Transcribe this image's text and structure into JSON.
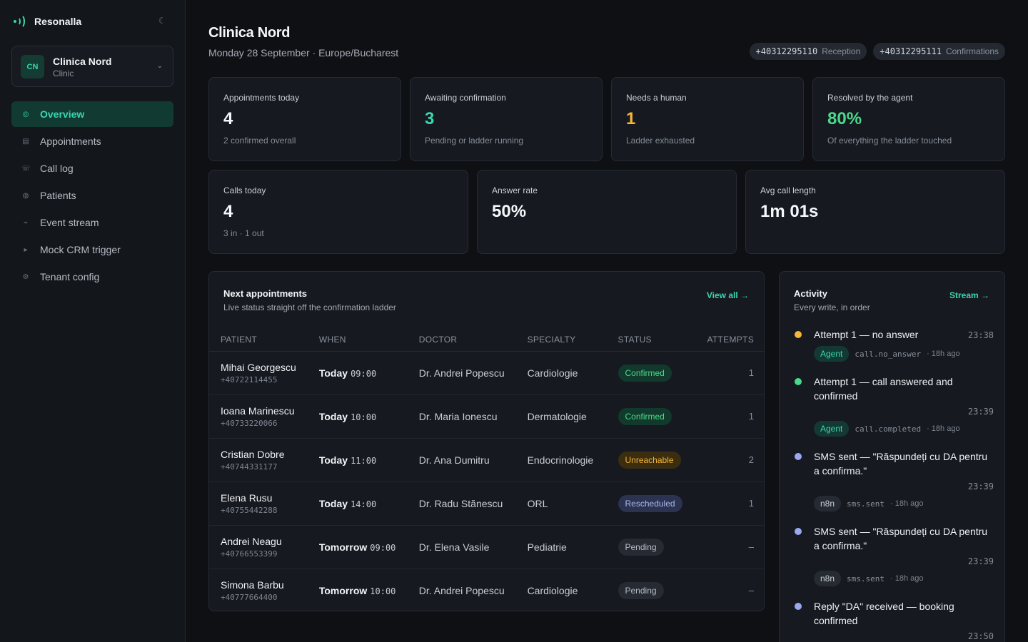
{
  "brand": {
    "name": "Resonalla"
  },
  "tenant": {
    "initials": "CN",
    "name": "Clinica Nord",
    "type": "Clinic"
  },
  "nav": [
    {
      "label": "Overview",
      "icon": "overview-icon",
      "glyph": "◎",
      "active": true
    },
    {
      "label": "Appointments",
      "icon": "appointments-icon",
      "glyph": "▤"
    },
    {
      "label": "Call log",
      "icon": "call-log-icon",
      "glyph": "☏"
    },
    {
      "label": "Patients",
      "icon": "patients-icon",
      "glyph": "◍"
    },
    {
      "label": "Event stream",
      "icon": "event-stream-icon",
      "glyph": "⌁"
    },
    {
      "label": "Mock CRM trigger",
      "icon": "play-icon",
      "glyph": "▸"
    },
    {
      "label": "Tenant config",
      "icon": "gear-icon",
      "glyph": "⚙"
    }
  ],
  "header": {
    "title": "Clinica Nord",
    "subtitle": "Monday 28 September · Europe/Bucharest",
    "phones": [
      {
        "number": "+40312295110",
        "label": "Reception"
      },
      {
        "number": "+40312295111",
        "label": "Confirmations"
      }
    ]
  },
  "stats_top": [
    {
      "label": "Appointments today",
      "value": "4",
      "hint": "2 confirmed overall"
    },
    {
      "label": "Awaiting confirmation",
      "value": "3",
      "hint": "Pending or ladder running"
    },
    {
      "label": "Needs a human",
      "value": "1",
      "hint": "Ladder exhausted"
    },
    {
      "label": "Resolved by the agent",
      "value": "80%",
      "hint": "Of everything the ladder touched"
    }
  ],
  "stats_bottom": [
    {
      "label": "Calls today",
      "value": "4",
      "hint": "3 in · 1 out"
    },
    {
      "label": "Answer rate",
      "value": "50%",
      "hint": ""
    },
    {
      "label": "Avg call length",
      "value": "1m 01s",
      "hint": ""
    }
  ],
  "appointments": {
    "title": "Next appointments",
    "subtitle": "Live status straight off the confirmation ladder",
    "view_all": "View all →",
    "columns": [
      "Patient",
      "When",
      "Doctor",
      "Specialty",
      "Status",
      "Attempts"
    ],
    "rows": [
      {
        "patient": "Mihai Georgescu",
        "phone": "+40722114455",
        "day": "Today",
        "time": "09:00",
        "doctor": "Dr. Andrei Popescu",
        "specialty": "Cardiologie",
        "status": "Confirmed",
        "attempts": "1"
      },
      {
        "patient": "Ioana Marinescu",
        "phone": "+40733220066",
        "day": "Today",
        "time": "10:00",
        "doctor": "Dr. Maria Ionescu",
        "specialty": "Dermatologie",
        "status": "Confirmed",
        "attempts": "1"
      },
      {
        "patient": "Cristian Dobre",
        "phone": "+40744331177",
        "day": "Today",
        "time": "11:00",
        "doctor": "Dr. Ana Dumitru",
        "specialty": "Endocrinologie",
        "status": "Unreachable",
        "attempts": "2"
      },
      {
        "patient": "Elena Rusu",
        "phone": "+40755442288",
        "day": "Today",
        "time": "14:00",
        "doctor": "Dr. Radu Stănescu",
        "specialty": "ORL",
        "status": "Rescheduled",
        "attempts": "1"
      },
      {
        "patient": "Andrei Neagu",
        "phone": "+40766553399",
        "day": "Tomorrow",
        "time": "09:00",
        "doctor": "Dr. Elena Vasile",
        "specialty": "Pediatrie",
        "status": "Pending",
        "attempts": "–"
      },
      {
        "patient": "Simona Barbu",
        "phone": "+40777664400",
        "day": "Tomorrow",
        "time": "10:00",
        "doctor": "Dr. Andrei Popescu",
        "specialty": "Cardiologie",
        "status": "Pending",
        "attempts": "–"
      }
    ]
  },
  "activity": {
    "title": "Activity",
    "subtitle": "Every write, in order",
    "stream_link": "Stream →",
    "events": [
      {
        "text": "Attempt 1 — no answer",
        "time": "23:38",
        "source": "Agent",
        "code": "call.no_answer",
        "ago": "· 18h ago",
        "color": "#f5b638",
        "inline_time": true
      },
      {
        "text": "Attempt 1 — call answered and confirmed",
        "time": "23:39",
        "source": "Agent",
        "code": "call.completed",
        "ago": "· 18h ago",
        "color": "#4ad98a"
      },
      {
        "text": "SMS sent — \"Răspundeți cu DA pentru a confirma.\"",
        "time": "23:39",
        "source": "n8n",
        "code": "sms.sent",
        "ago": "· 18h ago",
        "color": "#9aa8f0"
      },
      {
        "text": "SMS sent — \"Răspundeți cu DA pentru a confirma.\"",
        "time": "23:39",
        "source": "n8n",
        "code": "sms.sent",
        "ago": "· 18h ago",
        "color": "#9aa8f0"
      },
      {
        "text": "Reply \"DA\" received — booking confirmed",
        "time": "23:50",
        "source": "",
        "code": "",
        "ago": "",
        "color": "#9aa8f0"
      }
    ]
  }
}
